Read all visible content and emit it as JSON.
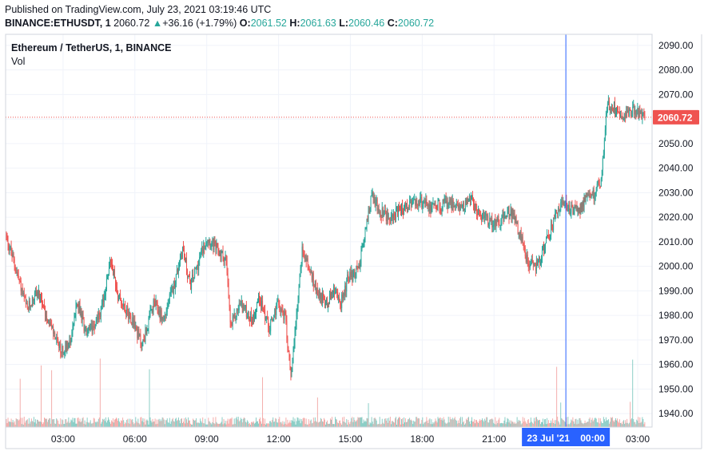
{
  "header": {
    "published": "Published on TradingView.com, July 23, 2021 03:19:46 UTC",
    "symbol": "BINANCE:ETHUSDT, 1",
    "last": "2060.72",
    "change_arrow": "▲",
    "change": "+36.16 (+1.79%)",
    "o_label": "O:",
    "o_value": "2061.52",
    "h_label": "H:",
    "h_value": "2061.63",
    "l_label": "L:",
    "l_value": "2060.46",
    "c_label": "C:",
    "c_value": "2060.72"
  },
  "legend": {
    "title": "Ethereum / TetherUS, 1, BINANCE",
    "volume": "Vol"
  },
  "colors": {
    "up": "#26a69a",
    "down": "#ef5350",
    "up_volume": "#7fc8c0",
    "down_volume": "#f2a5a3",
    "crosshair": "#2962ff",
    "price_line": "#ef5350",
    "grid": "#f0f3fa",
    "axis_text": "#131722"
  },
  "chart_data": {
    "type": "candlestick",
    "x_axis": {
      "tick_labels": [
        "03:00",
        "06:00",
        "09:00",
        "12:00",
        "15:00",
        "18:00",
        "21:00",
        "03:00"
      ],
      "tick_hours": [
        3,
        6,
        9,
        12,
        15,
        18,
        21,
        27
      ],
      "range_hours": [
        0.6,
        27.6
      ],
      "crosshair_label": "23 Jul '21    00:00",
      "crosshair_hour": 24
    },
    "y_axis": {
      "tick_labels": [
        "2090.00",
        "2080.00",
        "2070.00",
        "2060.00",
        "2050.00",
        "2040.00",
        "2030.00",
        "2020.00",
        "2010.00",
        "2000.00",
        "1990.00",
        "1980.00",
        "1970.00",
        "1960.00",
        "1950.00",
        "1940.00"
      ],
      "tick_values": [
        2090,
        2080,
        2070,
        2060,
        2050,
        2040,
        2030,
        2020,
        2010,
        2000,
        1990,
        1980,
        1970,
        1960,
        1950,
        1940
      ],
      "range": [
        1934.5,
        2094.5
      ],
      "current_price": 2060.72,
      "current_price_label": "2060.72"
    },
    "price_path": [
      {
        "hour": 0.6,
        "price": 2013
      },
      {
        "hour": 1.0,
        "price": 2000
      },
      {
        "hour": 1.5,
        "price": 1982
      },
      {
        "hour": 1.9,
        "price": 1990
      },
      {
        "hour": 2.4,
        "price": 1978
      },
      {
        "hour": 2.9,
        "price": 1965
      },
      {
        "hour": 3.3,
        "price": 1970
      },
      {
        "hour": 3.6,
        "price": 1985
      },
      {
        "hour": 4.0,
        "price": 1972
      },
      {
        "hour": 4.6,
        "price": 1982
      },
      {
        "hour": 5.0,
        "price": 2003
      },
      {
        "hour": 5.3,
        "price": 1988
      },
      {
        "hour": 5.9,
        "price": 1978
      },
      {
        "hour": 6.3,
        "price": 1968
      },
      {
        "hour": 6.8,
        "price": 1985
      },
      {
        "hour": 7.2,
        "price": 1978
      },
      {
        "hour": 7.7,
        "price": 1995
      },
      {
        "hour": 8.0,
        "price": 2008
      },
      {
        "hour": 8.3,
        "price": 1992
      },
      {
        "hour": 8.6,
        "price": 2000
      },
      {
        "hour": 9.0,
        "price": 2012
      },
      {
        "hour": 9.4,
        "price": 2007
      },
      {
        "hour": 9.8,
        "price": 2003
      },
      {
        "hour": 10.0,
        "price": 1975
      },
      {
        "hour": 10.4,
        "price": 1985
      },
      {
        "hour": 10.9,
        "price": 1978
      },
      {
        "hour": 11.2,
        "price": 1988
      },
      {
        "hour": 11.6,
        "price": 1975
      },
      {
        "hour": 12.0,
        "price": 1985
      },
      {
        "hour": 12.3,
        "price": 1978
      },
      {
        "hour": 12.5,
        "price": 1955
      },
      {
        "hour": 12.7,
        "price": 1975
      },
      {
        "hour": 13.0,
        "price": 2008
      },
      {
        "hour": 13.3,
        "price": 1998
      },
      {
        "hour": 13.6,
        "price": 1990
      },
      {
        "hour": 14.0,
        "price": 1985
      },
      {
        "hour": 14.3,
        "price": 1990
      },
      {
        "hour": 14.6,
        "price": 1985
      },
      {
        "hour": 14.9,
        "price": 1995
      },
      {
        "hour": 15.3,
        "price": 1998
      },
      {
        "hour": 15.6,
        "price": 2012
      },
      {
        "hour": 15.9,
        "price": 2030
      },
      {
        "hour": 16.2,
        "price": 2022
      },
      {
        "hour": 16.6,
        "price": 2020
      },
      {
        "hour": 17.0,
        "price": 2022
      },
      {
        "hour": 17.5,
        "price": 2025
      },
      {
        "hour": 18.0,
        "price": 2026
      },
      {
        "hour": 18.5,
        "price": 2024
      },
      {
        "hour": 19.0,
        "price": 2026
      },
      {
        "hour": 19.5,
        "price": 2024
      },
      {
        "hour": 20.0,
        "price": 2027
      },
      {
        "hour": 20.5,
        "price": 2020
      },
      {
        "hour": 21.0,
        "price": 2018
      },
      {
        "hour": 21.5,
        "price": 2020
      },
      {
        "hour": 21.8,
        "price": 2022
      },
      {
        "hour": 22.1,
        "price": 2012
      },
      {
        "hour": 22.4,
        "price": 2002
      },
      {
        "hour": 22.8,
        "price": 2000
      },
      {
        "hour": 23.1,
        "price": 2008
      },
      {
        "hour": 23.4,
        "price": 2015
      },
      {
        "hour": 23.7,
        "price": 2024
      },
      {
        "hour": 24.0,
        "price": 2025
      },
      {
        "hour": 24.3,
        "price": 2022
      },
      {
        "hour": 24.7,
        "price": 2025
      },
      {
        "hour": 25.2,
        "price": 2030
      },
      {
        "hour": 25.5,
        "price": 2036
      },
      {
        "hour": 25.7,
        "price": 2065
      },
      {
        "hour": 26.0,
        "price": 2065
      },
      {
        "hour": 26.4,
        "price": 2062
      },
      {
        "hour": 26.8,
        "price": 2064
      },
      {
        "hour": 27.3,
        "price": 2061
      }
    ]
  }
}
